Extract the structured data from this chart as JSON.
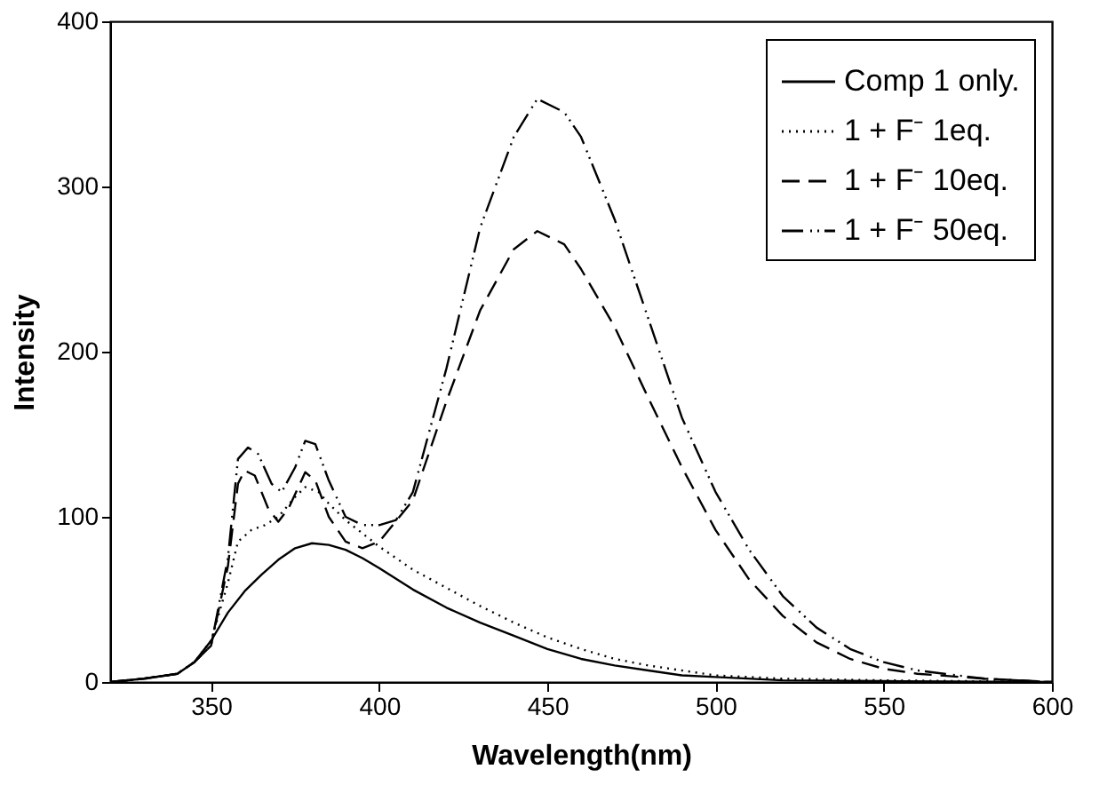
{
  "chart_data": {
    "type": "line",
    "xlabel": "Wavelength(nm)",
    "ylabel": "Intensity",
    "xlim": [
      320,
      600
    ],
    "xticks": [
      350,
      400,
      450,
      500,
      550,
      600
    ],
    "ylim": [
      0,
      400
    ],
    "yticks": [
      0,
      100,
      200,
      300,
      400
    ],
    "grid": false,
    "legend": "top right",
    "marker": "none",
    "series": [
      {
        "name": "Comp 1 only.",
        "color": "#000000",
        "line_style": "solid",
        "x": [
          320,
          330,
          340,
          345,
          350,
          355,
          360,
          365,
          370,
          375,
          380,
          385,
          390,
          395,
          400,
          410,
          420,
          430,
          440,
          450,
          460,
          470,
          480,
          490,
          500,
          520,
          550,
          600
        ],
        "values": [
          0,
          2,
          5,
          12,
          25,
          42,
          55,
          65,
          74,
          81,
          84,
          83,
          80,
          75,
          69,
          56,
          45,
          36,
          28,
          20,
          14,
          10,
          7,
          4,
          3,
          1,
          0.5,
          0
        ]
      },
      {
        "name": "1 +  F⁻ 1eq.",
        "color": "#000000",
        "line_style": "dotted",
        "x": [
          320,
          330,
          340,
          345,
          350,
          355,
          358,
          362,
          366,
          370,
          375,
          378,
          382,
          385,
          390,
          395,
          400,
          410,
          420,
          430,
          440,
          450,
          460,
          470,
          480,
          490,
          500,
          520,
          550,
          600
        ],
        "values": [
          0,
          2,
          5,
          12,
          25,
          60,
          85,
          92,
          95,
          100,
          112,
          118,
          115,
          108,
          98,
          90,
          82,
          68,
          57,
          46,
          36,
          27,
          20,
          14,
          10,
          7,
          4,
          2,
          1,
          0
        ]
      },
      {
        "name": "1 +  F⁻ 10eq.",
        "color": "#000000",
        "line_style": "dashed",
        "x": [
          320,
          330,
          340,
          345,
          350,
          355,
          358,
          360,
          363,
          367,
          370,
          373,
          378,
          381,
          385,
          390,
          395,
          400,
          410,
          420,
          430,
          440,
          447,
          455,
          460,
          470,
          480,
          490,
          500,
          510,
          520,
          530,
          540,
          550,
          560,
          580,
          600
        ],
        "values": [
          0,
          2,
          5,
          12,
          22,
          70,
          120,
          128,
          125,
          105,
          97,
          105,
          127,
          122,
          100,
          85,
          81,
          85,
          110,
          170,
          225,
          262,
          273,
          265,
          250,
          215,
          172,
          130,
          92,
          62,
          40,
          24,
          14,
          8,
          5,
          2,
          0
        ]
      },
      {
        "name": "1 +  F⁻ 50eq.",
        "color": "#000000",
        "line_style": "dashdotdot",
        "x": [
          320,
          330,
          340,
          345,
          350,
          355,
          358,
          361,
          364,
          368,
          371,
          375,
          378,
          381,
          385,
          390,
          395,
          400,
          405,
          410,
          420,
          430,
          440,
          447,
          455,
          460,
          470,
          480,
          490,
          500,
          510,
          520,
          530,
          540,
          550,
          560,
          580,
          600
        ],
        "values": [
          0,
          2,
          5,
          12,
          22,
          75,
          135,
          142,
          138,
          120,
          115,
          130,
          146,
          144,
          122,
          100,
          95,
          95,
          98,
          115,
          190,
          275,
          330,
          353,
          345,
          330,
          280,
          220,
          160,
          115,
          80,
          52,
          33,
          20,
          12,
          7,
          2,
          0
        ]
      }
    ]
  }
}
